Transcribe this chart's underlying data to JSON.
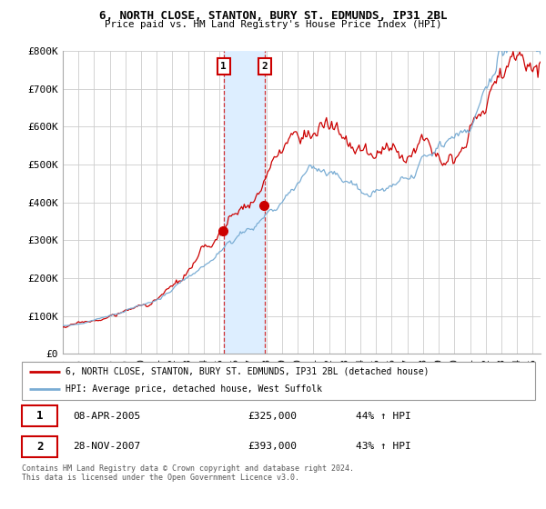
{
  "title1": "6, NORTH CLOSE, STANTON, BURY ST. EDMUNDS, IP31 2BL",
  "title2": "Price paid vs. HM Land Registry's House Price Index (HPI)",
  "ylim": [
    0,
    800000
  ],
  "yticks": [
    0,
    100000,
    200000,
    300000,
    400000,
    500000,
    600000,
    700000,
    800000
  ],
  "ytick_labels": [
    "£0",
    "£100K",
    "£200K",
    "£300K",
    "£400K",
    "£500K",
    "£600K",
    "£700K",
    "£800K"
  ],
  "xlim_start": 1995.0,
  "xlim_end": 2025.5,
  "transaction1_x": 2005.27,
  "transaction1_y": 325000,
  "transaction1_label": "1",
  "transaction2_x": 2007.91,
  "transaction2_y": 393000,
  "transaction2_label": "2",
  "legend_line1": "6, NORTH CLOSE, STANTON, BURY ST. EDMUNDS, IP31 2BL (detached house)",
  "legend_line2": "HPI: Average price, detached house, West Suffolk",
  "table_row1_num": "1",
  "table_row1_date": "08-APR-2005",
  "table_row1_price": "£325,000",
  "table_row1_hpi": "44% ↑ HPI",
  "table_row2_num": "2",
  "table_row2_date": "28-NOV-2007",
  "table_row2_price": "£393,000",
  "table_row2_hpi": "43% ↑ HPI",
  "footer": "Contains HM Land Registry data © Crown copyright and database right 2024.\nThis data is licensed under the Open Government Licence v3.0.",
  "red_color": "#cc0000",
  "blue_color": "#7aadd4",
  "shade_color": "#ddeeff",
  "grid_color": "#cccccc",
  "spine_color": "#aaaaaa"
}
